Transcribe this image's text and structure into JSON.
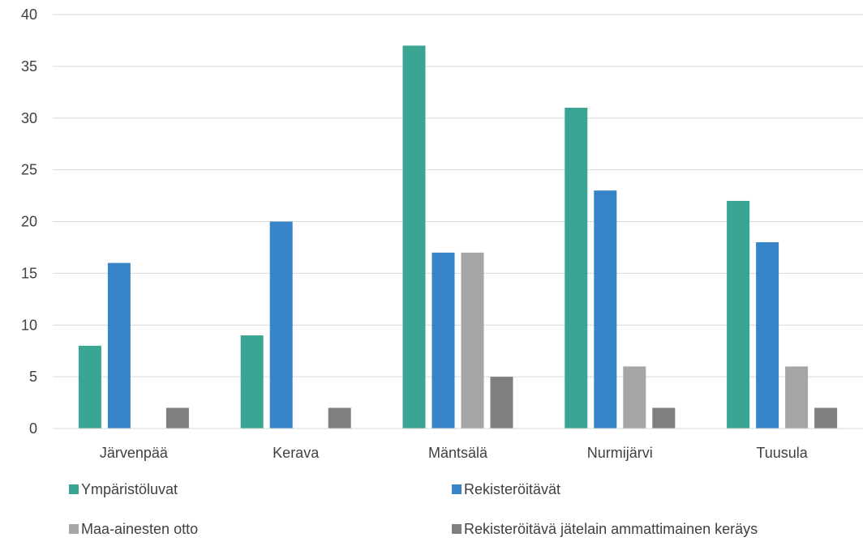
{
  "chart_data": {
    "type": "bar",
    "title": "",
    "xlabel": "",
    "ylabel": "",
    "categories": [
      "Järvenpää",
      "Kerava",
      "Mäntsälä",
      "Nurmijärvi",
      "Tuusula"
    ],
    "ylim": [
      0,
      40
    ],
    "yticks": [
      "0",
      "5",
      "10",
      "15",
      "20",
      "25",
      "30",
      "35",
      "40"
    ],
    "grid": true,
    "legend_position": "bottom",
    "series": [
      {
        "name": "Ympäristöluvat",
        "color": "#3BA593",
        "values": [
          8,
          9,
          37,
          31,
          22
        ]
      },
      {
        "name": "Rekisteröitävät",
        "color": "#3784C8",
        "values": [
          16,
          20,
          17,
          23,
          18
        ]
      },
      {
        "name": "Maa-ainesten otto",
        "color": "#A6A6A6",
        "values": [
          null,
          null,
          17,
          6,
          6
        ]
      },
      {
        "name": "Rekisteröitävä jätelain ammattimainen keräys",
        "color": "#7F7F7F",
        "values": [
          2,
          2,
          5,
          2,
          2
        ]
      }
    ]
  }
}
